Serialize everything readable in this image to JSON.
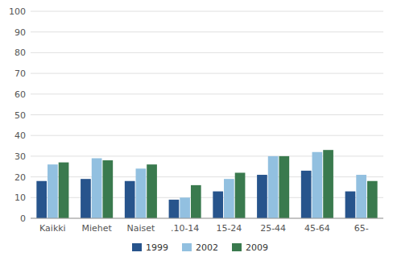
{
  "chart_data": {
    "type": "bar",
    "categories": [
      "Kaikki",
      "Miehet",
      "Naiset",
      ".10-14",
      "15-24",
      "25-44",
      "45-64",
      "65-"
    ],
    "series": [
      {
        "name": "1999",
        "color": "#27548C",
        "values": [
          18,
          19,
          18,
          9,
          13,
          21,
          23,
          13
        ]
      },
      {
        "name": "2002",
        "color": "#92C0E0",
        "values": [
          26,
          29,
          24,
          10,
          19,
          30,
          32,
          21
        ]
      },
      {
        "name": "2009",
        "color": "#3A7A4E",
        "values": [
          27,
          28,
          26,
          16,
          22,
          30,
          33,
          18
        ]
      }
    ],
    "ylim": [
      0,
      100
    ],
    "yticks": [
      0,
      10,
      20,
      30,
      40,
      50,
      60,
      70,
      80,
      90,
      100
    ],
    "grid": true,
    "legend": "bottom"
  }
}
